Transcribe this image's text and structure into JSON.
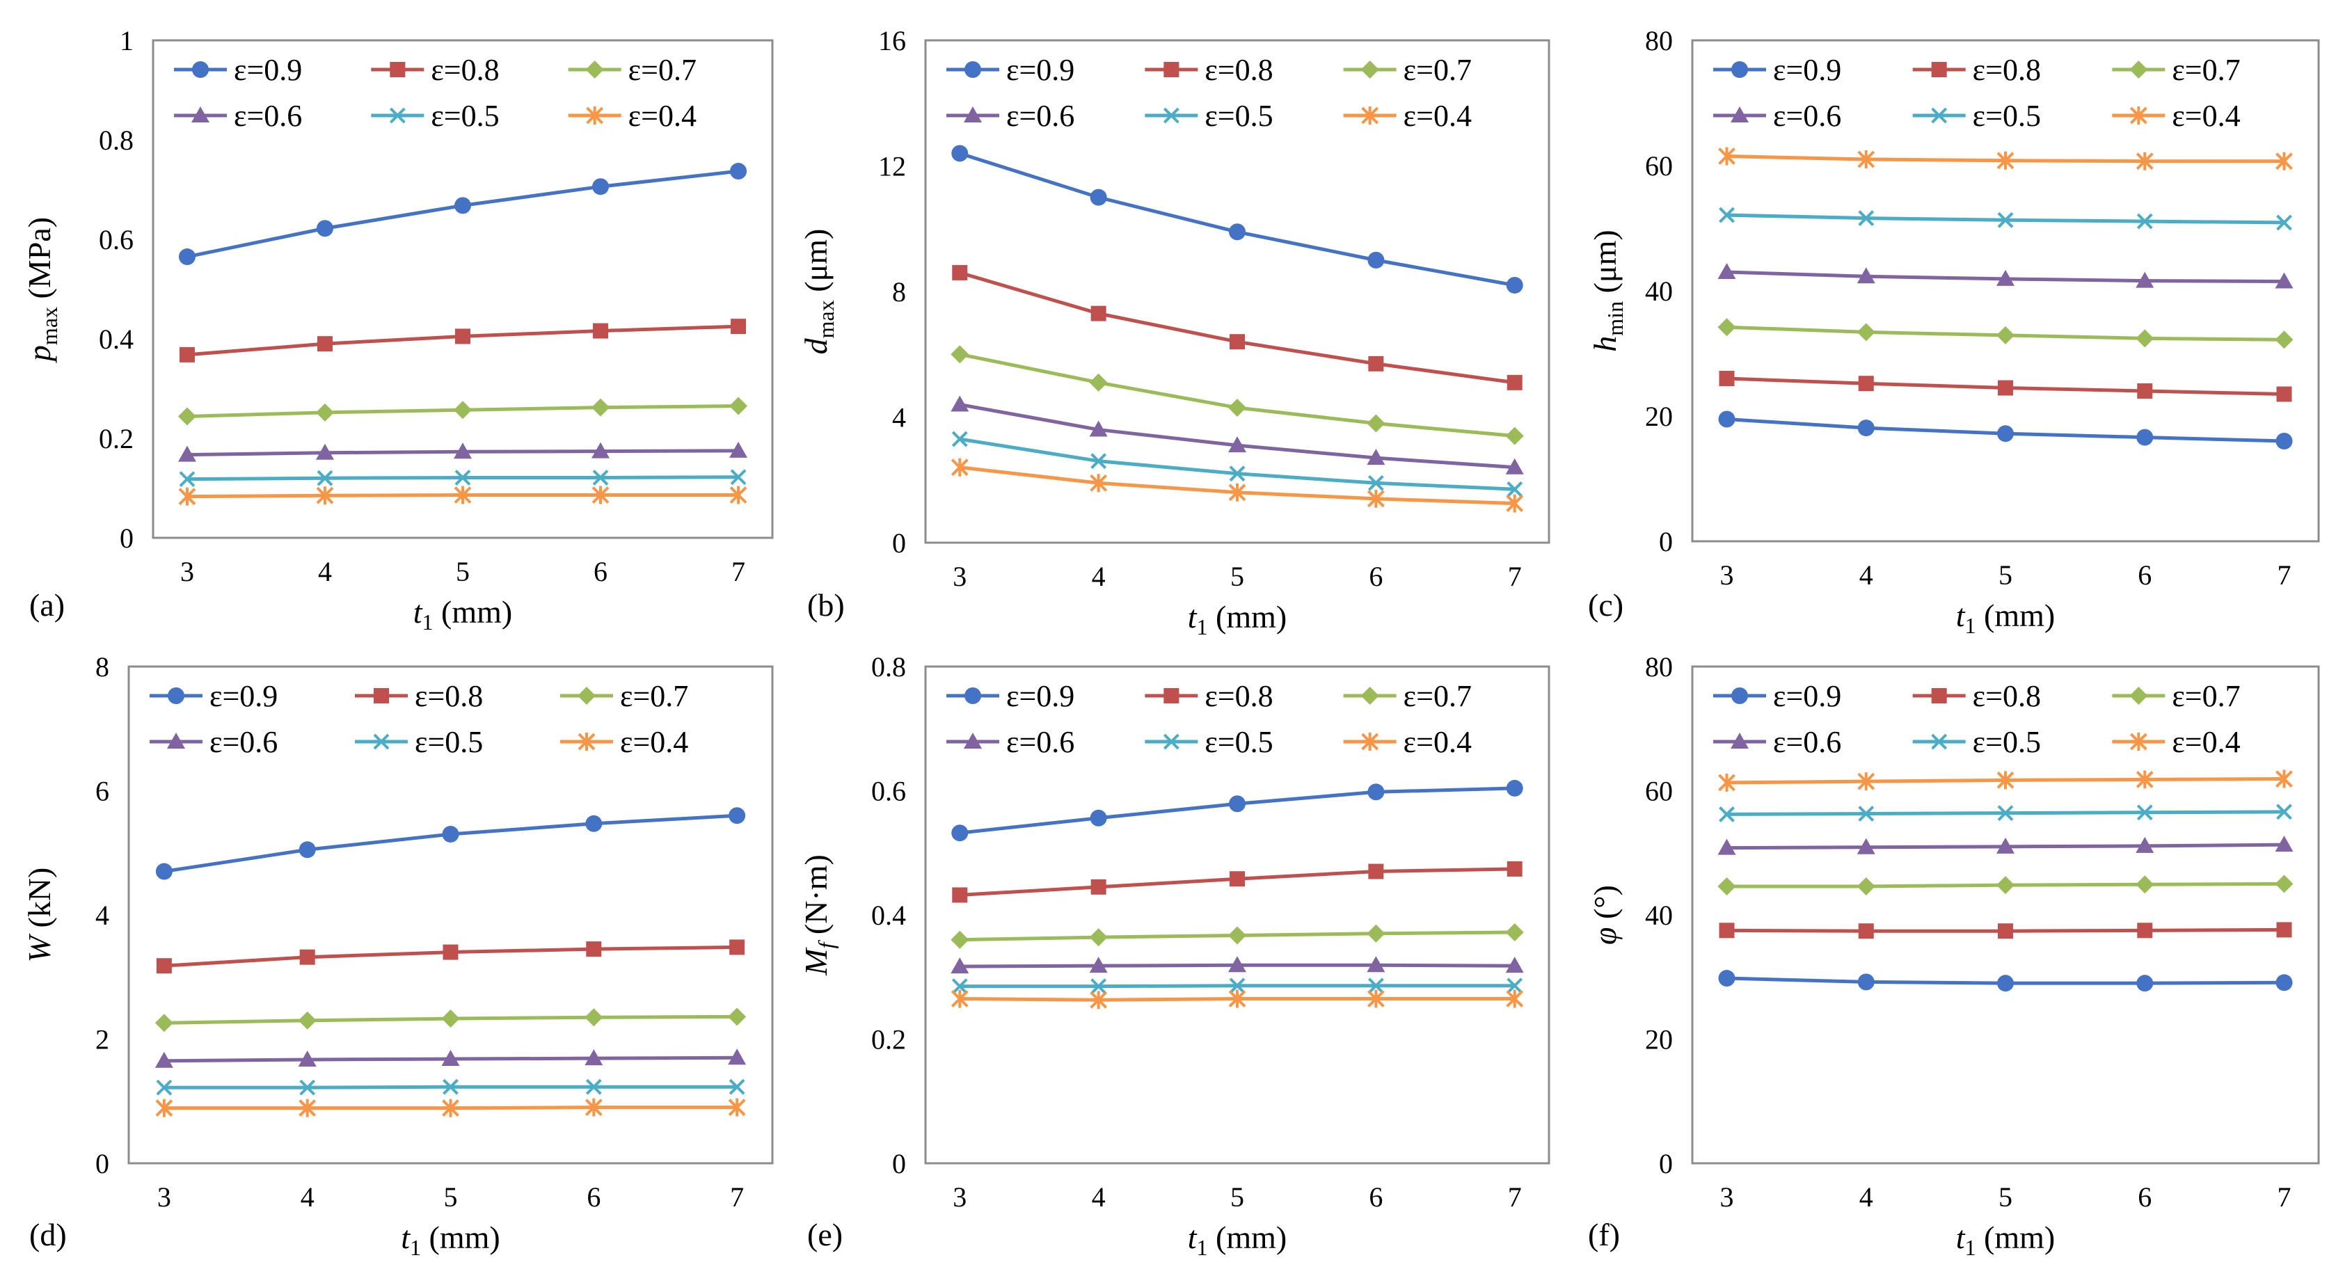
{
  "figure": {
    "xlabel_main": "t",
    "xlabel_sub": "1",
    "xlabel_unit": " (mm)"
  },
  "colors": {
    "eps_0.9": "#4472C4",
    "eps_0.8": "#C0504D",
    "eps_0.7": "#9BBB59",
    "eps_0.6": "#8064A2",
    "eps_0.5": "#4BACC6",
    "eps_0.4": "#F79646"
  },
  "markers": [
    "circle",
    "square",
    "diamond",
    "triangle",
    "x",
    "star"
  ],
  "chart_data": [
    {
      "id": "a",
      "panel_label": "(a)",
      "type": "line",
      "ylabel": {
        "main": "p",
        "sub": "max",
        "unit": " (MPa)"
      },
      "x": [
        3,
        4,
        5,
        6,
        7
      ],
      "xlabel": "t1 (mm)",
      "ylim": [
        0,
        1
      ],
      "yticks": [
        0,
        0.2,
        0.4,
        0.6,
        0.8,
        1
      ],
      "ytick_labels": [
        "0",
        "0.2",
        "0.4",
        "0.6",
        "0.8",
        "1"
      ],
      "series": [
        {
          "name": "ε=0.9",
          "values": [
            0.565,
            0.622,
            0.668,
            0.706,
            0.737
          ]
        },
        {
          "name": "ε=0.8",
          "values": [
            0.368,
            0.39,
            0.405,
            0.416,
            0.425
          ]
        },
        {
          "name": "ε=0.7",
          "values": [
            0.244,
            0.252,
            0.257,
            0.262,
            0.265
          ]
        },
        {
          "name": "ε=0.6",
          "values": [
            0.167,
            0.171,
            0.173,
            0.174,
            0.175
          ]
        },
        {
          "name": "ε=0.5",
          "values": [
            0.118,
            0.12,
            0.121,
            0.121,
            0.122
          ]
        },
        {
          "name": "ε=0.4",
          "values": [
            0.083,
            0.085,
            0.086,
            0.086,
            0.086
          ]
        }
      ]
    },
    {
      "id": "b",
      "panel_label": "(b)",
      "type": "line",
      "ylabel": {
        "main": "d",
        "sub": "max",
        "unit": " (μm)"
      },
      "x": [
        3,
        4,
        5,
        6,
        7
      ],
      "xlabel": "t1 (mm)",
      "ylim": [
        0,
        16
      ],
      "yticks": [
        0,
        4,
        8,
        12,
        16
      ],
      "ytick_labels": [
        "0",
        "4",
        "8",
        "12",
        "16"
      ],
      "series": [
        {
          "name": "ε=0.9",
          "values": [
            12.4,
            11.0,
            9.9,
            9.0,
            8.2
          ]
        },
        {
          "name": "ε=0.8",
          "values": [
            8.6,
            7.3,
            6.4,
            5.7,
            5.1
          ]
        },
        {
          "name": "ε=0.7",
          "values": [
            6.0,
            5.1,
            4.3,
            3.8,
            3.4
          ]
        },
        {
          "name": "ε=0.6",
          "values": [
            4.4,
            3.6,
            3.1,
            2.7,
            2.4
          ]
        },
        {
          "name": "ε=0.5",
          "values": [
            3.3,
            2.6,
            2.2,
            1.9,
            1.7
          ]
        },
        {
          "name": "ε=0.4",
          "values": [
            2.4,
            1.9,
            1.6,
            1.4,
            1.25
          ]
        }
      ]
    },
    {
      "id": "c",
      "panel_label": "(c)",
      "type": "line",
      "ylabel": {
        "main": "h",
        "sub": "min",
        "unit": " (μm)"
      },
      "x": [
        3,
        4,
        5,
        6,
        7
      ],
      "xlabel": "t1 (mm)",
      "ylim": [
        0,
        80
      ],
      "yticks": [
        0,
        20,
        40,
        60,
        80
      ],
      "ytick_labels": [
        "0",
        "20",
        "40",
        "60",
        "80"
      ],
      "series": [
        {
          "name": "ε=0.9",
          "values": [
            19.5,
            18.1,
            17.2,
            16.6,
            16.0
          ]
        },
        {
          "name": "ε=0.8",
          "values": [
            26.0,
            25.2,
            24.5,
            24.0,
            23.5
          ]
        },
        {
          "name": "ε=0.7",
          "values": [
            34.2,
            33.4,
            32.9,
            32.4,
            32.2
          ]
        },
        {
          "name": "ε=0.6",
          "values": [
            43.0,
            42.3,
            41.9,
            41.6,
            41.5
          ]
        },
        {
          "name": "ε=0.5",
          "values": [
            52.1,
            51.6,
            51.3,
            51.1,
            50.9
          ]
        },
        {
          "name": "ε=0.4",
          "values": [
            61.5,
            61.0,
            60.8,
            60.7,
            60.7
          ]
        }
      ]
    },
    {
      "id": "d",
      "panel_label": "(d)",
      "type": "line",
      "ylabel": {
        "main": "W",
        "sub": "",
        "unit": " (kN)"
      },
      "x": [
        3,
        4,
        5,
        6,
        7
      ],
      "xlabel": "t1 (mm)",
      "ylim": [
        0,
        8
      ],
      "yticks": [
        0,
        2,
        4,
        6,
        8
      ],
      "ytick_labels": [
        "0",
        "2",
        "4",
        "6",
        "8"
      ],
      "series": [
        {
          "name": "ε=0.9",
          "values": [
            4.7,
            5.05,
            5.3,
            5.47,
            5.6
          ]
        },
        {
          "name": "ε=0.8",
          "values": [
            3.18,
            3.32,
            3.4,
            3.45,
            3.48
          ]
        },
        {
          "name": "ε=0.7",
          "values": [
            2.26,
            2.3,
            2.33,
            2.35,
            2.36
          ]
        },
        {
          "name": "ε=0.6",
          "values": [
            1.65,
            1.67,
            1.68,
            1.69,
            1.7
          ]
        },
        {
          "name": "ε=0.5",
          "values": [
            1.22,
            1.22,
            1.23,
            1.23,
            1.23
          ]
        },
        {
          "name": "ε=0.4",
          "values": [
            0.89,
            0.89,
            0.89,
            0.9,
            0.9
          ]
        }
      ]
    },
    {
      "id": "e",
      "panel_label": "(e)",
      "type": "line",
      "ylabel": {
        "main": "M",
        "sub": "f",
        "unit": " (N·m)"
      },
      "x": [
        3,
        4,
        5,
        6,
        7
      ],
      "xlabel": "t1 (mm)",
      "ylim": [
        0,
        0.8
      ],
      "yticks": [
        0,
        0.2,
        0.4,
        0.6,
        0.8
      ],
      "ytick_labels": [
        "0",
        "0.2",
        "0.4",
        "0.6",
        "0.8"
      ],
      "series": [
        {
          "name": "ε=0.9",
          "values": [
            0.532,
            0.556,
            0.579,
            0.598,
            0.604
          ]
        },
        {
          "name": "ε=0.8",
          "values": [
            0.432,
            0.445,
            0.458,
            0.47,
            0.474
          ]
        },
        {
          "name": "ε=0.7",
          "values": [
            0.36,
            0.364,
            0.367,
            0.37,
            0.372
          ]
        },
        {
          "name": "ε=0.6",
          "values": [
            0.317,
            0.318,
            0.319,
            0.319,
            0.318
          ]
        },
        {
          "name": "ε=0.5",
          "values": [
            0.285,
            0.285,
            0.286,
            0.286,
            0.286
          ]
        },
        {
          "name": "ε=0.4",
          "values": [
            0.265,
            0.263,
            0.265,
            0.265,
            0.265
          ]
        }
      ]
    },
    {
      "id": "f",
      "panel_label": "(f)",
      "type": "line",
      "ylabel": {
        "main": "φ",
        "sub": "",
        "unit": " (°)"
      },
      "x": [
        3,
        4,
        5,
        6,
        7
      ],
      "xlabel": "t1 (mm)",
      "ylim": [
        0,
        80
      ],
      "yticks": [
        0,
        20,
        40,
        60,
        80
      ],
      "ytick_labels": [
        "0",
        "20",
        "40",
        "60",
        "80"
      ],
      "series": [
        {
          "name": "ε=0.9",
          "values": [
            29.8,
            29.2,
            29.0,
            29.0,
            29.1
          ]
        },
        {
          "name": "ε=0.8",
          "values": [
            37.5,
            37.4,
            37.4,
            37.5,
            37.6
          ]
        },
        {
          "name": "ε=0.7",
          "values": [
            44.6,
            44.6,
            44.8,
            44.9,
            45.0
          ]
        },
        {
          "name": "ε=0.6",
          "values": [
            50.8,
            50.9,
            51.0,
            51.1,
            51.3
          ]
        },
        {
          "name": "ε=0.5",
          "values": [
            56.2,
            56.3,
            56.4,
            56.5,
            56.6
          ]
        },
        {
          "name": "ε=0.4",
          "values": [
            61.3,
            61.5,
            61.7,
            61.8,
            61.9
          ]
        }
      ]
    }
  ]
}
